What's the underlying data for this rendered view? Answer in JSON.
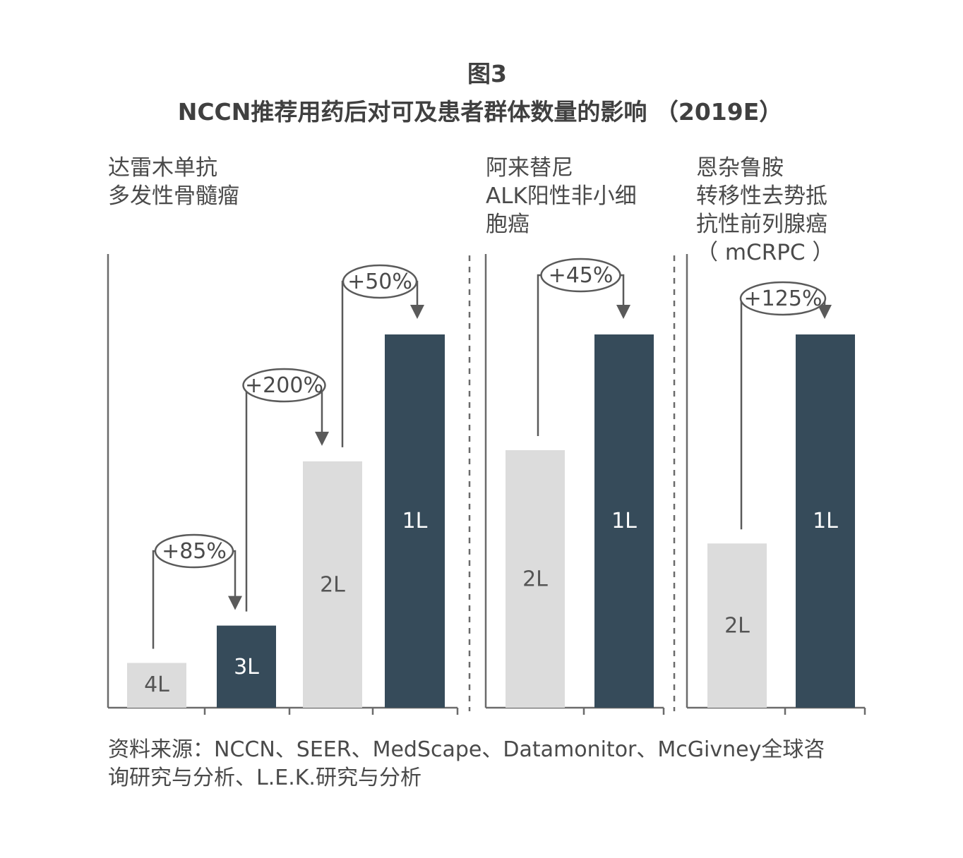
{
  "title_line1": "图3",
  "title_line2": "NCCN推荐用药后对可及患者群体数量的影响 （2019E）",
  "source_lines": [
    "资料来源：NCCN、SEER、MedScape、Datamonitor、McGivney全球咨",
    "询研究与分析、L.E.K.研究与分析"
  ],
  "colors": {
    "dark_bar": "#364b5a",
    "light_bar": "#dcdcdc",
    "axis": "#6b6b6b",
    "connector": "#5a5a5a"
  },
  "chart_data": [
    {
      "type": "bar",
      "label_lines": [
        "达雷木单抗",
        "多发性骨髓瘤"
      ],
      "categories": [
        "4L",
        "3L",
        "2L",
        "1L"
      ],
      "values": [
        12,
        22,
        66,
        100
      ],
      "increases": [
        {
          "from": "4L",
          "to": "3L",
          "label": "+85%"
        },
        {
          "from": "3L",
          "to": "2L",
          "label": "+200%"
        },
        {
          "from": "2L",
          "to": "1L",
          "label": "+50%"
        }
      ]
    },
    {
      "type": "bar",
      "label_lines": [
        "阿来替尼",
        "ALK阳性非小细",
        "胞癌"
      ],
      "categories": [
        "2L",
        "1L"
      ],
      "values": [
        69,
        100
      ],
      "increases": [
        {
          "from": "2L",
          "to": "1L",
          "label": "+45%"
        }
      ]
    },
    {
      "type": "bar",
      "label_lines": [
        "恩杂鲁胺",
        "转移性去势抵",
        "抗性前列腺癌",
        "（ mCRPC ）"
      ],
      "categories": [
        "2L",
        "1L"
      ],
      "values": [
        44,
        100
      ],
      "increases": [
        {
          "from": "2L",
          "to": "1L",
          "label": "+125%"
        }
      ]
    }
  ]
}
